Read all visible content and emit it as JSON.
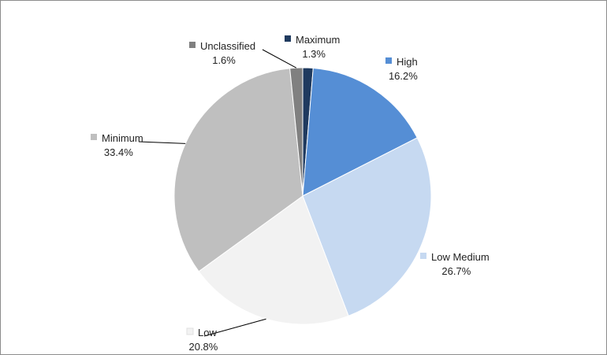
{
  "chart_data": {
    "type": "pie",
    "title": "",
    "legend": "none",
    "slices": [
      {
        "label": "Maximum",
        "value": 1.3,
        "display": "1.3%",
        "color": "#1f3a5f"
      },
      {
        "label": "High",
        "value": 16.2,
        "display": "16.2%",
        "color": "#558ed5"
      },
      {
        "label": "Low Medium",
        "value": 26.7,
        "display": "26.7%",
        "color": "#c6d9f1"
      },
      {
        "label": "Low",
        "value": 20.8,
        "display": "20.8%",
        "color": "#f2f2f2"
      },
      {
        "label": "Minimum",
        "value": 33.4,
        "display": "33.4%",
        "color": "#bfbfbf"
      },
      {
        "label": "Unclassified",
        "value": 1.6,
        "display": "1.6%",
        "color": "#808080"
      }
    ]
  }
}
